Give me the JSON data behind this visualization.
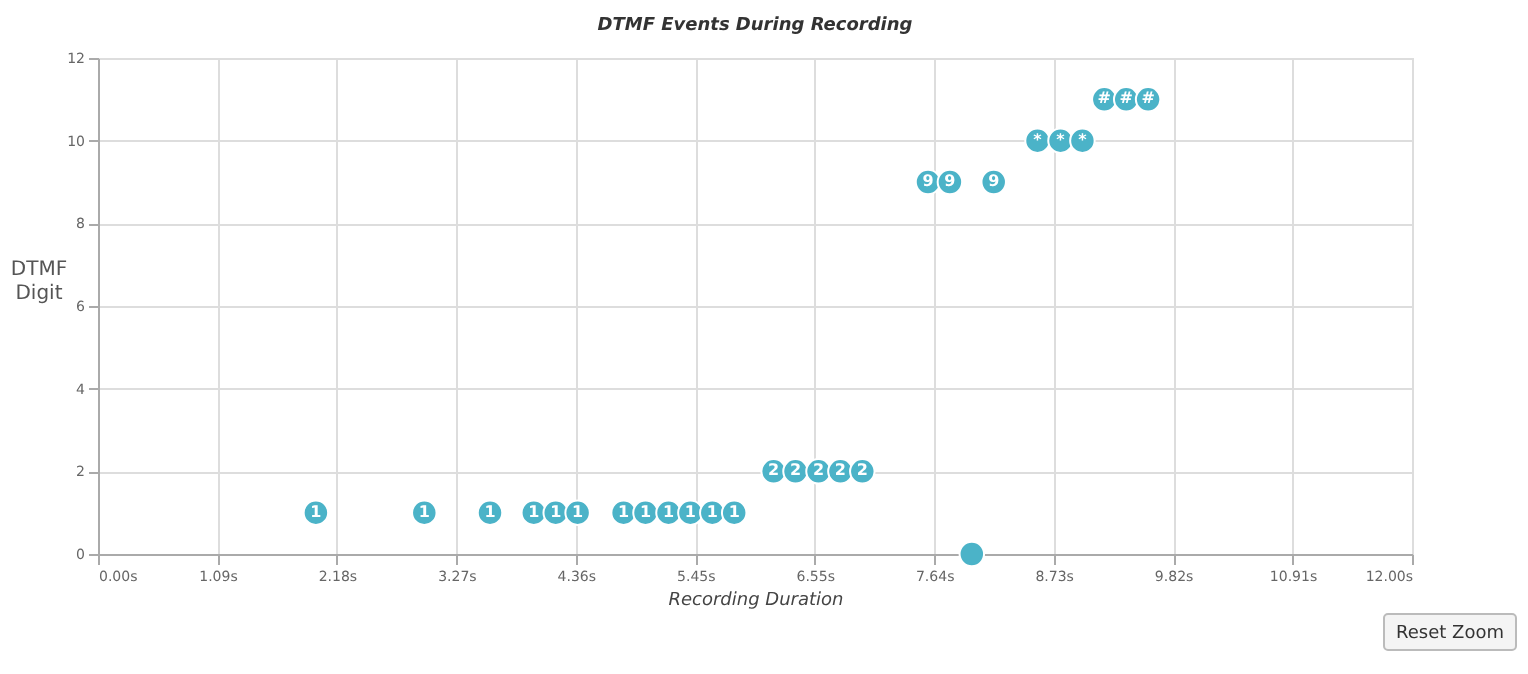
{
  "chart_data": {
    "type": "scatter",
    "title": "DTMF Events During Recording",
    "xlabel": "Recording Duration",
    "ylabel": "DTMF Digit",
    "x": [
      1.99,
      2.98,
      3.58,
      3.98,
      4.18,
      4.38,
      4.8,
      5.0,
      5.21,
      5.41,
      5.61,
      5.81,
      6.17,
      6.37,
      6.58,
      6.78,
      6.98,
      7.58,
      7.78,
      8.18,
      8.58,
      8.79,
      8.99,
      9.19,
      9.39,
      9.59,
      7.98
    ],
    "series": [
      {
        "color": "#4bb3c8",
        "values": [
          1,
          1,
          1,
          1,
          1,
          1,
          1,
          1,
          1,
          1,
          1,
          1,
          2,
          2,
          2,
          2,
          2,
          9,
          9,
          9,
          10,
          10,
          10,
          11,
          11,
          11,
          0
        ],
        "value_labels": [
          "1",
          "1",
          "1",
          "1",
          "1",
          "1",
          "1",
          "1",
          "1",
          "1",
          "1",
          "1",
          "2",
          "2",
          "2",
          "2",
          "2",
          "9",
          "9",
          "9",
          "*",
          "*",
          "*",
          "#",
          "#",
          "#",
          null
        ]
      }
    ],
    "xlim": [
      0,
      12
    ],
    "xticks": [
      {
        "value": 0,
        "label": "0.00s"
      },
      {
        "value": 1.0909,
        "label": "1.09s"
      },
      {
        "value": 2.1818,
        "label": "2.18s"
      },
      {
        "value": 3.2727,
        "label": "3.27s"
      },
      {
        "value": 4.3636,
        "label": "4.36s"
      },
      {
        "value": 5.4545,
        "label": "5.45s"
      },
      {
        "value": 6.5455,
        "label": "6.55s"
      },
      {
        "value": 7.6364,
        "label": "7.64s"
      },
      {
        "value": 8.7273,
        "label": "8.73s"
      },
      {
        "value": 9.8182,
        "label": "9.82s"
      },
      {
        "value": 10.9091,
        "label": "10.91s"
      },
      {
        "value": 12,
        "label": "12.00s"
      }
    ],
    "ylim": [
      0,
      12
    ],
    "yticks": [
      0,
      2,
      4,
      6,
      8,
      10,
      12
    ],
    "grid": true,
    "marker": "circle",
    "annotations": [
      "Reset Zoom"
    ]
  }
}
